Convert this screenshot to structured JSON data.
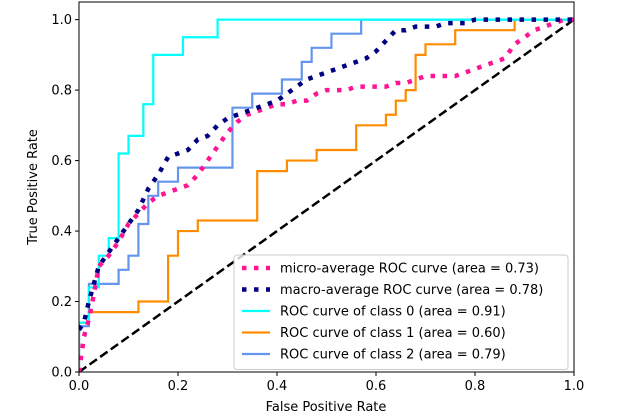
{
  "chart_data": {
    "type": "line",
    "title": "",
    "xlabel": "False Positive Rate",
    "ylabel": "True Positive Rate",
    "xlim": [
      0.0,
      1.0
    ],
    "ylim": [
      0.0,
      1.05
    ],
    "xticks": [
      "0.0",
      "0.2",
      "0.4",
      "0.6",
      "0.8",
      "1.0"
    ],
    "yticks": [
      "0.0",
      "0.2",
      "0.4",
      "0.6",
      "0.8",
      "1.0"
    ],
    "grid": false,
    "legend_position": "lower-right",
    "series": [
      {
        "name": "micro-average ROC curve (area = 0.73)",
        "color": "#ff1493",
        "style": "dotted",
        "x": [
          0.0,
          0.01,
          0.02,
          0.03,
          0.04,
          0.06,
          0.08,
          0.1,
          0.12,
          0.14,
          0.16,
          0.18,
          0.2,
          0.22,
          0.24,
          0.26,
          0.28,
          0.3,
          0.32,
          0.34,
          0.36,
          0.38,
          0.4,
          0.42,
          0.44,
          0.46,
          0.48,
          0.5,
          0.52,
          0.54,
          0.56,
          0.58,
          0.6,
          0.62,
          0.64,
          0.66,
          0.68,
          0.7,
          0.72,
          0.74,
          0.76,
          0.78,
          0.8,
          0.82,
          0.84,
          0.86,
          0.88,
          0.9,
          0.92,
          0.94,
          0.96,
          0.98,
          1.0
        ],
        "y": [
          0.0,
          0.1,
          0.15,
          0.22,
          0.3,
          0.33,
          0.37,
          0.42,
          0.45,
          0.48,
          0.5,
          0.51,
          0.52,
          0.53,
          0.56,
          0.6,
          0.64,
          0.68,
          0.71,
          0.73,
          0.74,
          0.75,
          0.76,
          0.76,
          0.77,
          0.77,
          0.79,
          0.8,
          0.8,
          0.8,
          0.81,
          0.81,
          0.81,
          0.81,
          0.82,
          0.82,
          0.83,
          0.84,
          0.84,
          0.84,
          0.84,
          0.85,
          0.86,
          0.87,
          0.88,
          0.89,
          0.93,
          0.95,
          0.97,
          0.98,
          0.99,
          1.0,
          1.0
        ]
      },
      {
        "name": "macro-average ROC curve (area = 0.78)",
        "color": "#000080",
        "style": "dotted",
        "x": [
          0.0,
          0.01,
          0.02,
          0.03,
          0.04,
          0.06,
          0.08,
          0.1,
          0.12,
          0.14,
          0.16,
          0.18,
          0.2,
          0.22,
          0.24,
          0.26,
          0.28,
          0.3,
          0.32,
          0.34,
          0.36,
          0.38,
          0.4,
          0.42,
          0.44,
          0.46,
          0.48,
          0.5,
          0.52,
          0.54,
          0.56,
          0.58,
          0.6,
          0.62,
          0.64,
          0.66,
          0.68,
          0.7,
          0.72,
          0.74,
          0.76,
          0.78,
          0.8,
          0.84,
          0.88,
          0.92,
          0.96,
          1.0
        ],
        "y": [
          0.12,
          0.14,
          0.2,
          0.25,
          0.3,
          0.34,
          0.38,
          0.42,
          0.46,
          0.52,
          0.56,
          0.61,
          0.62,
          0.63,
          0.66,
          0.67,
          0.7,
          0.72,
          0.73,
          0.74,
          0.75,
          0.76,
          0.77,
          0.79,
          0.81,
          0.83,
          0.84,
          0.85,
          0.86,
          0.87,
          0.88,
          0.89,
          0.91,
          0.94,
          0.97,
          0.97,
          0.98,
          0.98,
          0.98,
          0.99,
          0.99,
          0.99,
          1.0,
          1.0,
          1.0,
          1.0,
          1.0,
          1.0
        ]
      },
      {
        "name": "ROC curve of class 0 (area = 0.91)",
        "color": "#00ffff",
        "style": "solid",
        "x": [
          0.0,
          0.0,
          0.01,
          0.01,
          0.02,
          0.02,
          0.04,
          0.04,
          0.06,
          0.06,
          0.08,
          0.08,
          0.1,
          0.1,
          0.13,
          0.13,
          0.15,
          0.15,
          0.21,
          0.21,
          0.28,
          0.28,
          1.0
        ],
        "y": [
          0.0,
          0.14,
          0.14,
          0.14,
          0.14,
          0.24,
          0.24,
          0.33,
          0.33,
          0.38,
          0.38,
          0.62,
          0.62,
          0.67,
          0.67,
          0.76,
          0.76,
          0.9,
          0.9,
          0.95,
          0.95,
          1.0,
          1.0
        ]
      },
      {
        "name": "ROC curve of class 1 (area = 0.60)",
        "color": "#ff8c00",
        "style": "solid",
        "x": [
          0.0,
          0.0,
          0.02,
          0.02,
          0.06,
          0.06,
          0.12,
          0.12,
          0.16,
          0.16,
          0.18,
          0.18,
          0.2,
          0.2,
          0.24,
          0.24,
          0.26,
          0.26,
          0.36,
          0.36,
          0.42,
          0.42,
          0.48,
          0.48,
          0.56,
          0.56,
          0.62,
          0.62,
          0.64,
          0.64,
          0.66,
          0.66,
          0.68,
          0.68,
          0.7,
          0.7,
          0.76,
          0.76,
          0.82,
          0.82,
          0.88,
          0.88,
          1.0
        ],
        "y": [
          0.0,
          0.14,
          0.14,
          0.17,
          0.17,
          0.17,
          0.17,
          0.2,
          0.2,
          0.2,
          0.2,
          0.33,
          0.33,
          0.4,
          0.4,
          0.43,
          0.43,
          0.43,
          0.43,
          0.57,
          0.57,
          0.6,
          0.6,
          0.63,
          0.63,
          0.7,
          0.7,
          0.73,
          0.73,
          0.77,
          0.77,
          0.8,
          0.8,
          0.9,
          0.9,
          0.93,
          0.93,
          0.97,
          0.97,
          0.97,
          0.97,
          1.0,
          1.0
        ]
      },
      {
        "name": "ROC curve of class 2 (area = 0.79)",
        "color": "#6495ed",
        "style": "solid",
        "x": [
          0.0,
          0.0,
          0.02,
          0.02,
          0.04,
          0.04,
          0.08,
          0.08,
          0.1,
          0.1,
          0.12,
          0.12,
          0.14,
          0.14,
          0.16,
          0.16,
          0.2,
          0.2,
          0.24,
          0.24,
          0.31,
          0.31,
          0.33,
          0.33,
          0.35,
          0.35,
          0.41,
          0.41,
          0.45,
          0.45,
          0.47,
          0.47,
          0.51,
          0.51,
          0.55,
          0.55,
          0.57,
          0.57,
          1.0
        ],
        "y": [
          0.0,
          0.13,
          0.13,
          0.25,
          0.25,
          0.25,
          0.25,
          0.29,
          0.29,
          0.33,
          0.33,
          0.42,
          0.42,
          0.5,
          0.5,
          0.54,
          0.54,
          0.58,
          0.58,
          0.58,
          0.58,
          0.75,
          0.75,
          0.75,
          0.75,
          0.79,
          0.79,
          0.83,
          0.83,
          0.88,
          0.88,
          0.92,
          0.92,
          0.96,
          0.96,
          0.96,
          0.96,
          1.0,
          1.0
        ]
      },
      {
        "name": "",
        "color": "#000000",
        "style": "dashed",
        "x": [
          0.0,
          1.0
        ],
        "y": [
          0.0,
          1.0
        ]
      }
    ]
  }
}
